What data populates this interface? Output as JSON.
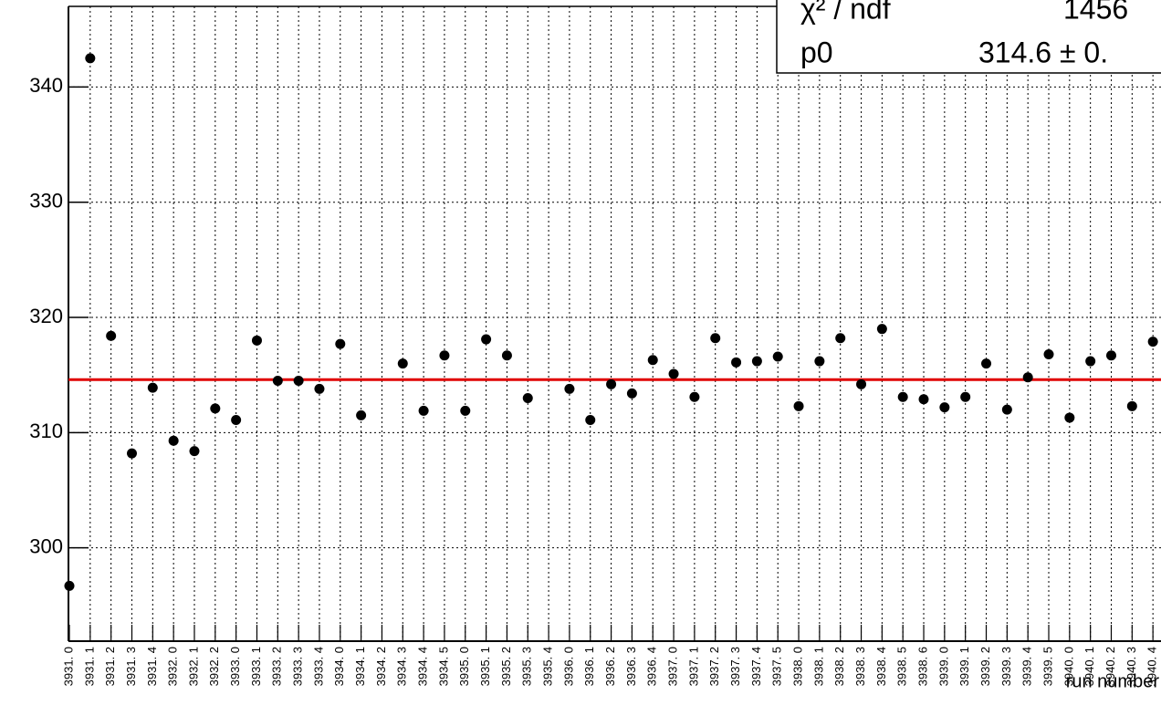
{
  "chart_data": {
    "type": "scatter",
    "x_label": "run number",
    "categories": [
      "3931. 0",
      "3931. 1",
      "3931. 2",
      "3931. 3",
      "3931. 4",
      "3932. 0",
      "3932. 1",
      "3932. 2",
      "3933. 0",
      "3933. 1",
      "3933. 2",
      "3933. 3",
      "3933. 4",
      "3934. 0",
      "3934. 1",
      "3934. 2",
      "3934. 3",
      "3934. 4",
      "3934. 5",
      "3935. 0",
      "3935. 1",
      "3935. 2",
      "3935. 3",
      "3935. 4",
      "3936. 0",
      "3936. 1",
      "3936. 2",
      "3936. 3",
      "3936. 4",
      "3937. 0",
      "3937. 1",
      "3937. 2",
      "3937. 3",
      "3937. 4",
      "3937. 5",
      "3938. 0",
      "3938. 1",
      "3938. 2",
      "3938. 3",
      "3938. 4",
      "3938. 5",
      "3938. 6",
      "3939. 0",
      "3939. 1",
      "3939. 2",
      "3939. 3",
      "3939. 4",
      "3939. 5",
      "3940. 0",
      "3940. 1",
      "3940. 2",
      "3940. 3",
      "3940. 4"
    ],
    "values": [
      296.7,
      342.5,
      318.4,
      308.2,
      313.9,
      309.3,
      308.4,
      312.1,
      311.1,
      318.0,
      314.5,
      314.5,
      313.8,
      317.7,
      311.5,
      null,
      316.0,
      311.9,
      316.7,
      311.9,
      318.1,
      316.7,
      313.0,
      null,
      313.8,
      311.1,
      314.2,
      313.4,
      316.3,
      315.1,
      313.1,
      318.2,
      316.1,
      316.2,
      316.6,
      312.3,
      316.2,
      318.2,
      314.2,
      319.0,
      313.1,
      312.9,
      312.2,
      313.1,
      316.0,
      312.0,
      314.8,
      316.8,
      311.3,
      316.2,
      316.7,
      312.3,
      317.9
    ],
    "color": "#000000",
    "fit_value": 314.6,
    "fit_color": "#e00000",
    "ylim": [
      291.9,
      347.0
    ],
    "yticks": [
      300,
      310,
      320,
      330,
      340
    ],
    "grid": true,
    "stats": [
      {
        "name": "χ² / ndf",
        "value": "1456"
      },
      {
        "name": "p0",
        "value": "314.6 ± 0."
      }
    ]
  }
}
